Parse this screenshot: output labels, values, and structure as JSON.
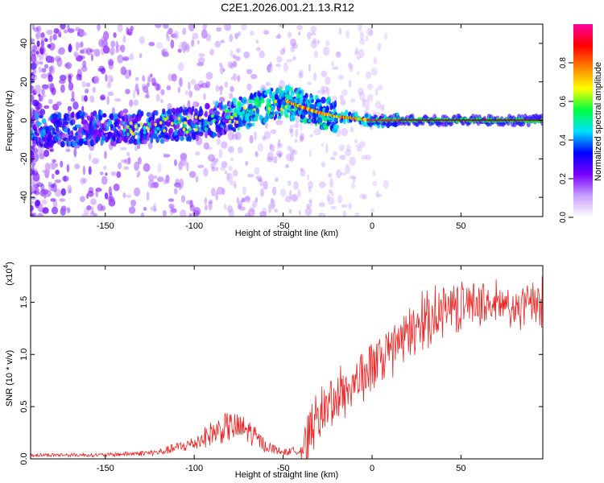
{
  "title": "C2E1.2026.001.21.13.R12",
  "chart_data": [
    {
      "type": "heatmap",
      "name": "spectrogram",
      "xlabel": "Height of straight line (km)",
      "ylabel": "Frequency (Hz)",
      "xlim": [
        -192,
        96
      ],
      "ylim": [
        -50,
        50
      ],
      "xticks": [
        -150,
        -100,
        -50,
        0,
        50
      ],
      "xtick_labels": [
        "-150",
        "-100",
        "-50",
        "0",
        "50"
      ],
      "yticks": [
        -40,
        -20,
        0,
        20,
        40
      ],
      "ytick_labels": [
        "-40",
        "-20",
        "0",
        "20",
        "40"
      ],
      "trace": {
        "description_points_km": [
          -190,
          -160,
          -140,
          -120,
          -100,
          -80,
          -65,
          -55,
          -48,
          -40,
          -30,
          -20,
          -10,
          0,
          10,
          20,
          96
        ],
        "frequency_hz": [
          -6,
          -4,
          -4,
          -3,
          -2,
          2,
          6,
          9,
          10,
          7,
          4,
          2,
          1,
          0,
          0,
          0,
          0
        ]
      },
      "colorbar": {
        "label": "Normalized spectral amplitude",
        "range": [
          0.0,
          1.0
        ],
        "ticks": [
          0.0,
          0.2,
          0.4,
          0.6,
          0.8
        ],
        "tick_labels": [
          "0.0",
          "0.2",
          "0.4",
          "0.6",
          "0.8"
        ],
        "colors": [
          "#ffffff",
          "#c8a0ff",
          "#7a00ff",
          "#0000ff",
          "#00e0ff",
          "#00ff40",
          "#ffff00",
          "#ff8000",
          "#ff0000",
          "#ff00a0"
        ]
      }
    },
    {
      "type": "line",
      "name": "snr",
      "xlabel": "Height of straight line (km)",
      "ylabel": "SNR (10 * v/v)",
      "scale_label_base": "(x10",
      "scale_label_exp": "4",
      "scale_label_close": ")",
      "xlim": [
        -192,
        96
      ],
      "ylim": [
        0.0,
        1.85
      ],
      "xticks": [
        -150,
        -100,
        -50,
        0,
        50
      ],
      "xtick_labels": [
        "-150",
        "-100",
        "-50",
        "0",
        "50"
      ],
      "yticks": [
        0.0,
        0.5,
        1.0,
        1.5
      ],
      "ytick_labels": [
        "0.0",
        "0.5",
        "1.0",
        "1.5"
      ],
      "color": "#ee2222",
      "envelope": {
        "x": [
          -192,
          -150,
          -120,
          -100,
          -90,
          -80,
          -70,
          -60,
          -50,
          -40,
          -35,
          -30,
          -20,
          -10,
          0,
          10,
          20,
          30,
          40,
          50,
          60,
          70,
          80,
          90,
          96
        ],
        "y": [
          0.03,
          0.03,
          0.05,
          0.12,
          0.2,
          0.25,
          0.22,
          0.1,
          0.05,
          0.07,
          0.28,
          0.45,
          0.6,
          0.75,
          0.9,
          1.05,
          1.2,
          1.35,
          1.45,
          1.5,
          1.52,
          1.48,
          1.45,
          1.5,
          1.45
        ]
      }
    }
  ]
}
